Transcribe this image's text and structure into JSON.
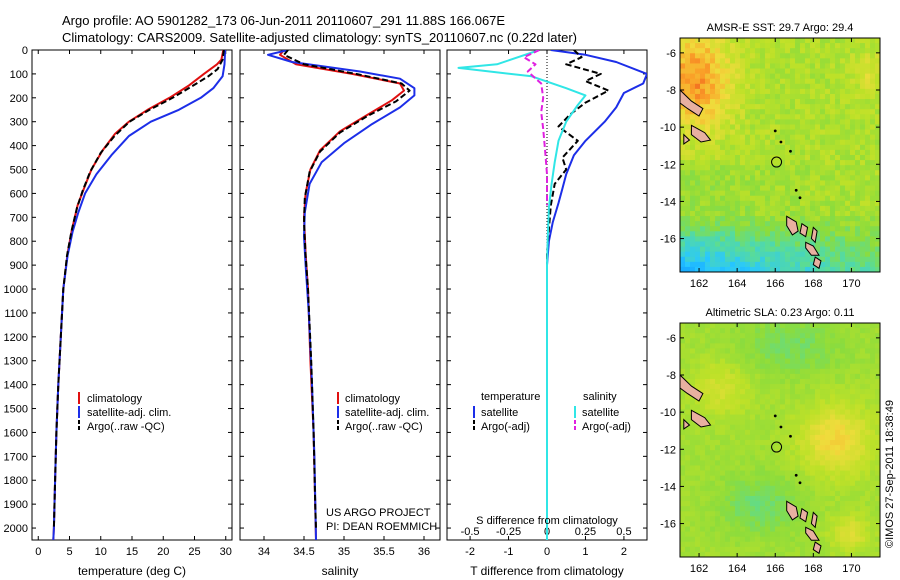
{
  "header": {
    "title_line1": "Argo profile: AO 5901282_173 06-Jun-2011 20110607_291 11.88S 166.067E",
    "title_line2": "Climatology: CARS2009. Satellite-adjusted climatology: synTS_20110607.nc (0.22d later)"
  },
  "colors": {
    "climatology": "#e01010",
    "satellite": "#1c2ee8",
    "argo": "#000000",
    "sal_satellite": "#30e6e6",
    "sal_argo": "#e020e0"
  },
  "depth_axis": {
    "range": [
      0,
      2050
    ],
    "ticks": [
      0,
      100,
      200,
      300,
      400,
      500,
      600,
      700,
      800,
      900,
      1000,
      1100,
      1200,
      1300,
      1400,
      1500,
      1600,
      1700,
      1800,
      1900,
      2000
    ]
  },
  "chart_data": [
    {
      "type": "line",
      "id": "temperature",
      "xlabel": "temperature (deg C)",
      "xlim": [
        -1,
        31
      ],
      "xticks": [
        0,
        5,
        10,
        15,
        20,
        25,
        30
      ],
      "legend": [
        "climatology",
        "satellite-adj. clim.",
        "Argo(..raw -QC)"
      ],
      "series": [
        {
          "name": "climatology",
          "color": "#e01010",
          "points": [
            [
              29.6,
              0
            ],
            [
              29.3,
              40
            ],
            [
              28.6,
              60
            ],
            [
              26.5,
              100
            ],
            [
              24,
              150
            ],
            [
              21,
              200
            ],
            [
              17.5,
              250
            ],
            [
              14.5,
              300
            ],
            [
              12.3,
              350
            ],
            [
              10.3,
              420
            ],
            [
              8.5,
              500
            ],
            [
              7.3,
              580
            ],
            [
              6.3,
              650
            ],
            [
              5.4,
              750
            ],
            [
              4.7,
              850
            ],
            [
              4,
              1000
            ],
            [
              3.6,
              1200
            ],
            [
              3.2,
              1400
            ],
            [
              2.9,
              1600
            ],
            [
              2.7,
              1800
            ],
            [
              2.5,
              2000
            ],
            [
              2.4,
              2050
            ]
          ]
        },
        {
          "name": "satellite-adj. clim.",
          "color": "#1c2ee8",
          "points": [
            [
              29.9,
              0
            ],
            [
              29.8,
              60
            ],
            [
              29.5,
              110
            ],
            [
              28,
              160
            ],
            [
              26,
              200
            ],
            [
              22.5,
              250
            ],
            [
              18,
              300
            ],
            [
              14.5,
              360
            ],
            [
              11.7,
              440
            ],
            [
              9.3,
              520
            ],
            [
              7.5,
              600
            ],
            [
              6.4,
              680
            ],
            [
              5.5,
              760
            ],
            [
              4.7,
              860
            ],
            [
              4,
              1000
            ],
            [
              3.6,
              1200
            ],
            [
              3.2,
              1400
            ],
            [
              2.9,
              1600
            ],
            [
              2.7,
              1800
            ],
            [
              2.5,
              2000
            ],
            [
              2.4,
              2050
            ]
          ]
        },
        {
          "name": "Argo(..raw -QC)",
          "color": "#000000",
          "dashed": true,
          "points": [
            [
              29.7,
              0
            ],
            [
              29.5,
              40
            ],
            [
              28.7,
              80
            ],
            [
              27.2,
              110
            ],
            [
              24.7,
              150
            ],
            [
              21.5,
              200
            ],
            [
              17.8,
              250
            ],
            [
              14.6,
              300
            ],
            [
              12.2,
              360
            ],
            [
              10,
              430
            ],
            [
              8.3,
              510
            ],
            [
              7.1,
              590
            ],
            [
              6.2,
              660
            ],
            [
              5.3,
              760
            ],
            [
              4.6,
              860
            ],
            [
              4,
              1000
            ],
            [
              3.6,
              1200
            ],
            [
              3.2,
              1400
            ],
            [
              2.9,
              1600
            ],
            [
              2.7,
              1800
            ],
            [
              2.5,
              2000
            ]
          ]
        }
      ]
    },
    {
      "type": "line",
      "id": "salinity",
      "xlabel": "salinity",
      "xlim": [
        33.7,
        36.2
      ],
      "xticks": [
        34,
        34.5,
        35,
        35.5,
        36
      ],
      "xtick_labels": [
        "34",
        "34.5",
        "35",
        "35.5",
        "36"
      ],
      "legend": [
        "climatology",
        "satellite-adj. clim.",
        "Argo(..raw -QC)"
      ],
      "annotation": [
        "US ARGO PROJECT",
        "PI: DEAN ROEMMICH"
      ],
      "series": [
        {
          "name": "climatology",
          "color": "#e01010",
          "points": [
            [
              34.25,
              0
            ],
            [
              34.2,
              20
            ],
            [
              34.4,
              60
            ],
            [
              35.1,
              100
            ],
            [
              35.7,
              140
            ],
            [
              35.75,
              170
            ],
            [
              35.6,
              210
            ],
            [
              35.3,
              270
            ],
            [
              34.95,
              340
            ],
            [
              34.7,
              420
            ],
            [
              34.58,
              500
            ],
            [
              34.52,
              600
            ],
            [
              34.5,
              700
            ],
            [
              34.52,
              850
            ],
            [
              34.55,
              1000
            ],
            [
              34.58,
              1300
            ],
            [
              34.62,
              1600
            ],
            [
              34.64,
              1900
            ],
            [
              34.65,
              2050
            ]
          ]
        },
        {
          "name": "satellite-adj. clim.",
          "color": "#1c2ee8",
          "points": [
            [
              34.3,
              0
            ],
            [
              34.05,
              20
            ],
            [
              34.35,
              50
            ],
            [
              35.2,
              90
            ],
            [
              35.7,
              120
            ],
            [
              35.88,
              160
            ],
            [
              35.88,
              190
            ],
            [
              35.7,
              240
            ],
            [
              35.35,
              310
            ],
            [
              35.0,
              390
            ],
            [
              34.72,
              470
            ],
            [
              34.57,
              560
            ],
            [
              34.51,
              680
            ],
            [
              34.5,
              780
            ],
            [
              34.52,
              900
            ],
            [
              34.56,
              1100
            ],
            [
              34.6,
              1400
            ],
            [
              34.63,
              1700
            ],
            [
              34.65,
              2050
            ]
          ]
        },
        {
          "name": "Argo(..raw -QC)",
          "color": "#000000",
          "dashed": true,
          "points": [
            [
              34.3,
              0
            ],
            [
              34.25,
              20
            ],
            [
              34.5,
              60
            ],
            [
              35.15,
              100
            ],
            [
              35.72,
              140
            ],
            [
              35.82,
              170
            ],
            [
              35.65,
              215
            ],
            [
              35.3,
              275
            ],
            [
              34.95,
              345
            ],
            [
              34.7,
              425
            ],
            [
              34.57,
              510
            ],
            [
              34.51,
              620
            ],
            [
              34.5,
              720
            ],
            [
              34.52,
              860
            ],
            [
              34.55,
              1000
            ],
            [
              34.59,
              1300
            ],
            [
              34.62,
              1600
            ],
            [
              34.64,
              1900
            ],
            [
              34.65,
              2000
            ]
          ]
        }
      ]
    },
    {
      "type": "line",
      "id": "difference",
      "xlabel": "T difference from climatology",
      "xlabel_top": "S difference from climatology",
      "xlim": [
        -2.6,
        2.6
      ],
      "xticks": [
        -2,
        -1,
        0,
        1,
        2
      ],
      "xtick_labels": [
        "-2",
        "-1",
        "0",
        "1",
        "2"
      ],
      "xticks_top": [
        -2,
        -1,
        0,
        1,
        2
      ],
      "xtick_labels_top": [
        "-0.5",
        "-0.25",
        "0",
        "0.25",
        "0.5"
      ],
      "legend_groups": [
        {
          "title": "temperature",
          "items": [
            "satellite",
            "Argo(-adj)"
          ]
        },
        {
          "title": "salinity",
          "items": [
            "satellite",
            "Argo(-adj)"
          ]
        }
      ],
      "series": [
        {
          "name": "temperature satellite",
          "color": "#1c2ee8",
          "points": [
            [
              0.1,
              0
            ],
            [
              1.0,
              20
            ],
            [
              1.8,
              50
            ],
            [
              2.6,
              100
            ],
            [
              2.5,
              140
            ],
            [
              2.0,
              180
            ],
            [
              1.8,
              240
            ],
            [
              1.5,
              300
            ],
            [
              1.0,
              380
            ],
            [
              0.7,
              440
            ],
            [
              0.5,
              520
            ],
            [
              0.4,
              580
            ],
            [
              0.3,
              640
            ],
            [
              0.15,
              720
            ],
            [
              0.05,
              800
            ],
            [
              0,
              900
            ],
            [
              0,
              1200
            ],
            [
              0,
              2050
            ]
          ]
        },
        {
          "name": "temperature Argo(-adj)",
          "color": "#000000",
          "dashed": true,
          "points": [
            [
              0.7,
              0
            ],
            [
              0.9,
              30
            ],
            [
              0.5,
              60
            ],
            [
              1.4,
              100
            ],
            [
              1.0,
              130
            ],
            [
              1.6,
              170
            ],
            [
              1.0,
              220
            ],
            [
              0.6,
              270
            ],
            [
              0.3,
              320
            ],
            [
              0.8,
              380
            ],
            [
              0.4,
              450
            ],
            [
              0.5,
              500
            ],
            [
              0.2,
              560
            ],
            [
              0.1,
              650
            ],
            [
              0.05,
              750
            ],
            [
              0,
              850
            ],
            [
              0,
              1000
            ]
          ]
        },
        {
          "name": "salinity satellite",
          "color": "#30e6e6",
          "points": [
            [
              -0.2,
              0
            ],
            [
              -1.3,
              60
            ],
            [
              -2.3,
              75
            ],
            [
              -0.4,
              110
            ],
            [
              0.5,
              160
            ],
            [
              1.0,
              190
            ],
            [
              0.8,
              230
            ],
            [
              0.5,
              300
            ],
            [
              0.3,
              380
            ],
            [
              0.2,
              470
            ],
            [
              0.12,
              560
            ],
            [
              0.05,
              660
            ],
            [
              0.02,
              780
            ],
            [
              0,
              900
            ],
            [
              0,
              1200
            ],
            [
              0,
              2050
            ]
          ]
        },
        {
          "name": "salinity Argo(-adj)",
          "color": "#e020e0",
          "dashed": true,
          "points": [
            [
              -0.2,
              0
            ],
            [
              -0.6,
              30
            ],
            [
              -0.3,
              60
            ],
            [
              -0.5,
              90
            ],
            [
              -0.15,
              140
            ],
            [
              -0.1,
              200
            ],
            [
              -0.15,
              260
            ],
            [
              -0.1,
              330
            ],
            [
              -0.05,
              420
            ],
            [
              0,
              520
            ],
            [
              0,
              650
            ]
          ]
        }
      ]
    },
    {
      "type": "heatmap",
      "id": "sst_map",
      "title": "AMSR-E SST: 29.7  Argo: 29.4",
      "xlim": [
        161,
        171.5
      ],
      "ylim": [
        -17.8,
        -5.2
      ],
      "xticks": [
        162,
        164,
        166,
        168,
        170
      ],
      "yticks": [
        -6,
        -8,
        -10,
        -12,
        -14,
        -16
      ],
      "marker": [
        166.07,
        -11.88
      ]
    },
    {
      "type": "heatmap",
      "id": "sla_map",
      "title": "Altimetric SLA: 0.23  Argo: 0.11",
      "xlim": [
        161,
        171.5
      ],
      "ylim": [
        -17.8,
        -5.2
      ],
      "xticks": [
        162,
        164,
        166,
        168,
        170
      ],
      "yticks": [
        -6,
        -8,
        -10,
        -12,
        -14,
        -16
      ],
      "marker": [
        166.07,
        -11.88
      ]
    }
  ],
  "credit": "©IMOS 27-Sep-2011 18:38:49"
}
